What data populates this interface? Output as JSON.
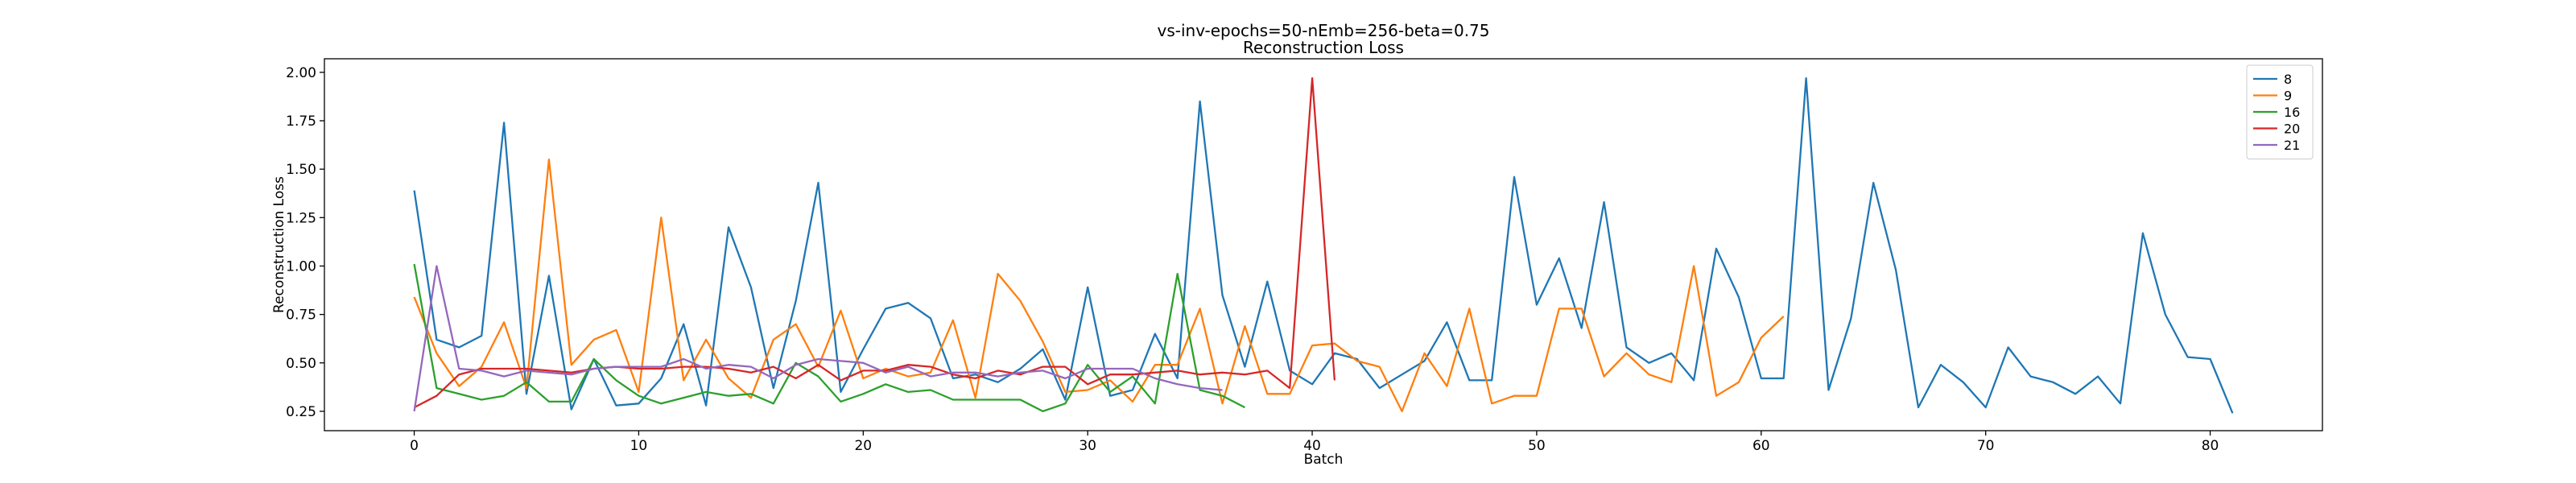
{
  "chart_data": {
    "type": "line",
    "title": "vs-inv-epochs=50-nEmb=256-beta=0.75",
    "subtitle": "Reconstruction Loss",
    "xlabel": "Batch",
    "ylabel": "Reconstruction Loss",
    "xlim": [
      -4,
      85
    ],
    "ylim": [
      0.15,
      2.07
    ],
    "xticks": [
      0,
      10,
      20,
      30,
      40,
      50,
      60,
      70,
      80
    ],
    "yticks": [
      0.25,
      0.5,
      0.75,
      1.0,
      1.25,
      1.5,
      1.75,
      2.0
    ],
    "ytick_labels": [
      "0.25",
      "0.50",
      "0.75",
      "1.00",
      "1.25",
      "1.50",
      "1.75",
      "2.00"
    ],
    "grid": false,
    "legend_position": "top-right",
    "series": [
      {
        "name": "8",
        "color": "#1f77b4",
        "values": [
          1.39,
          0.62,
          0.58,
          0.64,
          1.74,
          0.34,
          0.95,
          0.26,
          0.52,
          0.28,
          0.29,
          0.42,
          0.7,
          0.28,
          1.2,
          0.89,
          0.37,
          0.82,
          1.43,
          0.35,
          0.57,
          0.78,
          0.81,
          0.73,
          0.42,
          0.44,
          0.4,
          0.47,
          0.57,
          0.31,
          0.89,
          0.33,
          0.36,
          0.65,
          0.42,
          1.85,
          0.85,
          0.48,
          0.92,
          0.46,
          0.39,
          0.55,
          0.52,
          0.37,
          0.44,
          0.51,
          0.71,
          0.41,
          0.41,
          1.46,
          0.8,
          1.04,
          0.68,
          1.33,
          0.58,
          0.5,
          0.55,
          0.41,
          1.09,
          0.84,
          0.42,
          0.42,
          1.97,
          0.36,
          0.73,
          1.43,
          0.98,
          0.27,
          0.49,
          0.4,
          0.27,
          0.58,
          0.43,
          0.4,
          0.34,
          0.43,
          0.29,
          1.17,
          0.75,
          0.53,
          0.52,
          0.24
        ]
      },
      {
        "name": "9",
        "color": "#ff7f0e",
        "values": [
          0.84,
          0.55,
          0.38,
          0.48,
          0.71,
          0.37,
          1.55,
          0.49,
          0.62,
          0.67,
          0.35,
          1.25,
          0.41,
          0.62,
          0.42,
          0.32,
          0.62,
          0.7,
          0.48,
          0.77,
          0.42,
          0.47,
          0.43,
          0.45,
          0.72,
          0.32,
          0.96,
          0.82,
          0.61,
          0.35,
          0.36,
          0.41,
          0.3,
          0.49,
          0.49,
          0.78,
          0.29,
          0.69,
          0.34,
          0.34,
          0.59,
          0.6,
          0.51,
          0.48,
          0.25,
          0.55,
          0.38,
          0.78,
          0.29,
          0.33,
          0.33,
          0.78,
          0.78,
          0.43,
          0.55,
          0.44,
          0.4,
          1.0,
          0.33,
          0.4,
          0.63,
          0.74
        ]
      },
      {
        "name": "16",
        "color": "#2ca02c",
        "values": [
          1.01,
          0.37,
          0.34,
          0.31,
          0.33,
          0.4,
          0.3,
          0.3,
          0.52,
          0.41,
          0.33,
          0.29,
          0.32,
          0.35,
          0.33,
          0.34,
          0.29,
          0.5,
          0.43,
          0.3,
          0.34,
          0.39,
          0.35,
          0.36,
          0.31,
          0.31,
          0.31,
          0.31,
          0.25,
          0.29,
          0.49,
          0.35,
          0.43,
          0.29,
          0.96,
          0.36,
          0.33,
          0.27
        ]
      },
      {
        "name": "20",
        "color": "#d62728",
        "values": [
          0.27,
          0.33,
          0.44,
          0.47,
          0.47,
          0.47,
          0.46,
          0.45,
          0.47,
          0.48,
          0.47,
          0.47,
          0.48,
          0.48,
          0.47,
          0.45,
          0.48,
          0.42,
          0.49,
          0.41,
          0.46,
          0.46,
          0.49,
          0.48,
          0.44,
          0.42,
          0.46,
          0.44,
          0.48,
          0.48,
          0.39,
          0.44,
          0.44,
          0.45,
          0.46,
          0.44,
          0.45,
          0.44,
          0.46,
          0.37,
          1.97,
          0.41
        ]
      },
      {
        "name": "21",
        "color": "#9467bd",
        "values": [
          0.25,
          1.0,
          0.47,
          0.46,
          0.43,
          0.46,
          0.45,
          0.44,
          0.47,
          0.48,
          0.48,
          0.48,
          0.52,
          0.47,
          0.49,
          0.48,
          0.42,
          0.49,
          0.52,
          0.51,
          0.5,
          0.45,
          0.48,
          0.43,
          0.45,
          0.45,
          0.43,
          0.45,
          0.46,
          0.42,
          0.47,
          0.47,
          0.47,
          0.42,
          0.39,
          0.37,
          0.36
        ]
      }
    ]
  }
}
